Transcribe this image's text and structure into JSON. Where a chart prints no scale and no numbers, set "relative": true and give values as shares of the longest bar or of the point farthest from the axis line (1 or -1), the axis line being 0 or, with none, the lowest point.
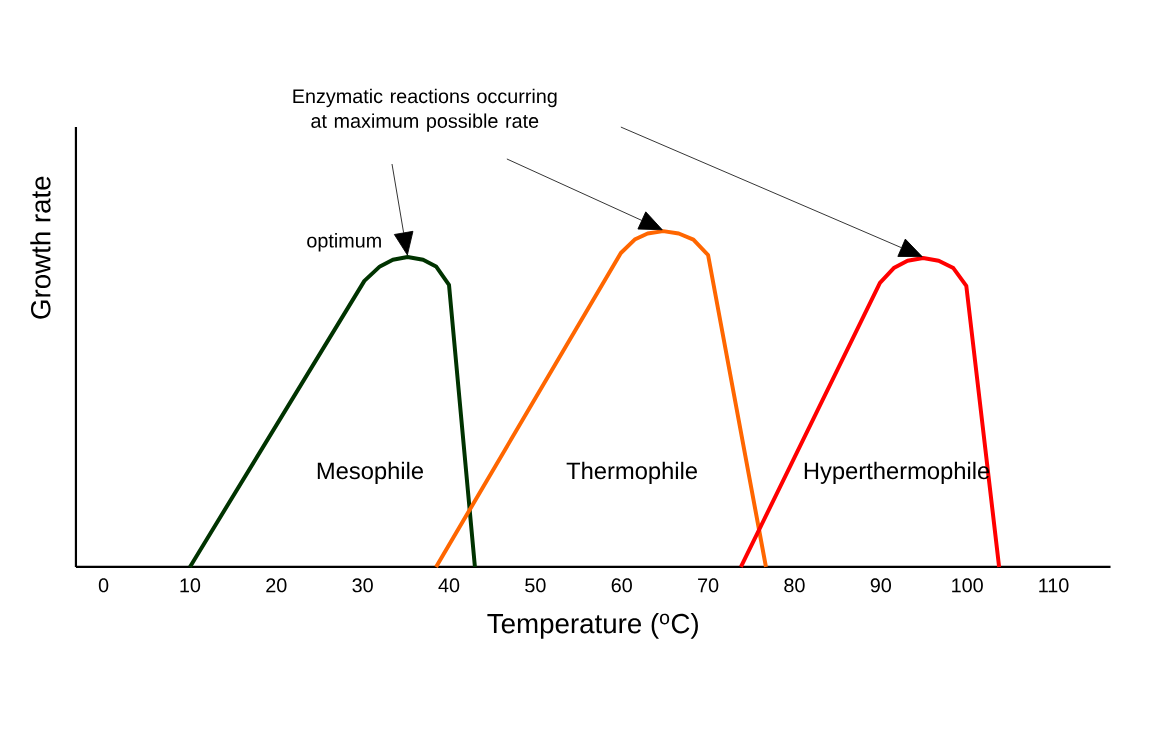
{
  "chart_data": {
    "type": "line",
    "relative": true,
    "xlabel": "Temperature ($^{o}$C)",
    "ylabel": "Growth rate",
    "xlim": [
      -3.2,
      116.6
    ],
    "xticks": [
      0,
      10,
      20,
      30,
      40,
      50,
      60,
      70,
      80,
      90,
      100,
      110
    ],
    "series": [
      {
        "name": "Mesophile",
        "color": "#003300",
        "x": [
          10,
          30.2,
          32,
          33.5,
          35.2,
          37,
          38.5,
          40,
          43
        ],
        "values": [
          0,
          0.852,
          0.895,
          0.915,
          0.923,
          0.915,
          0.895,
          0.84,
          0
        ]
      },
      {
        "name": "Thermophile",
        "color": "#ff6600",
        "x": [
          38.5,
          59.9,
          61.5,
          63,
          64.8,
          66.6,
          68.3,
          70,
          76.7
        ],
        "values": [
          0,
          0.935,
          0.975,
          0.993,
          1,
          0.993,
          0.975,
          0.929,
          0
        ]
      },
      {
        "name": "Hyperthermophile",
        "color": "#ff0000",
        "x": [
          73.8,
          89.9,
          91.5,
          93.1,
          94.9,
          96.7,
          98.4,
          99.9,
          103.7
        ],
        "values": [
          0,
          0.846,
          0.89,
          0.912,
          0.92,
          0.912,
          0.89,
          0.837,
          0
        ]
      }
    ],
    "annotations": [
      "Enzymatic reactions occurring at maximum possible rate",
      {
        "text": "optimum",
        "x": 35.2,
        "y": 0.923
      }
    ]
  }
}
